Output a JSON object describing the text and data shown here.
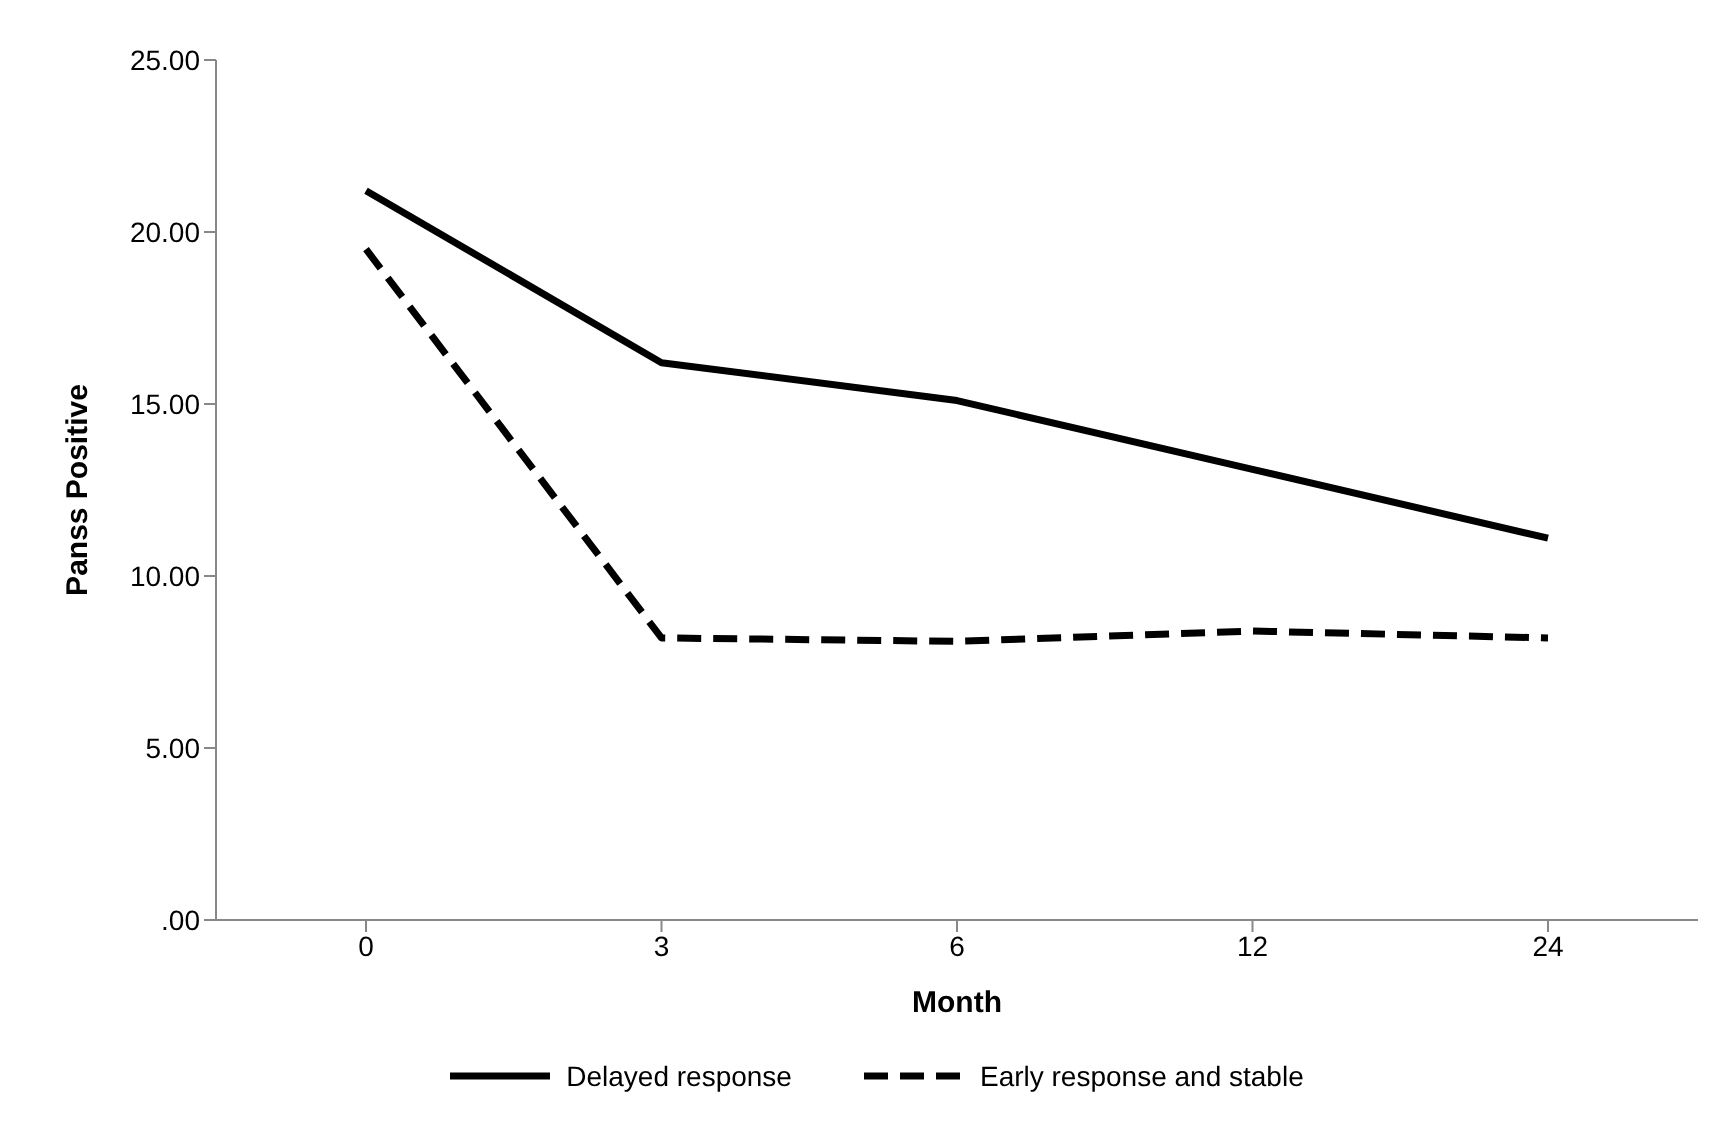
{
  "chart_data": {
    "type": "line",
    "xlabel": "Month",
    "ylabel": "Panss Positive",
    "categories": [
      "0",
      "3",
      "6",
      "12",
      "24"
    ],
    "series": [
      {
        "name": "Delayed response",
        "color": "#000000",
        "line_style": "solid",
        "values": [
          21.2,
          16.2,
          15.1,
          13.1,
          11.1
        ]
      },
      {
        "name": "Early response and stable",
        "color": "#000000",
        "line_style": "dashed",
        "values": [
          19.5,
          8.2,
          8.1,
          8.4,
          8.2
        ]
      }
    ],
    "ylim": [
      0,
      25
    ],
    "yticks": [
      {
        "value": 0,
        "label": ".00"
      },
      {
        "value": 5,
        "label": "5.00"
      },
      {
        "value": 10,
        "label": "10.00"
      },
      {
        "value": 15,
        "label": "15.00"
      },
      {
        "value": 20,
        "label": "20.00"
      },
      {
        "value": 25,
        "label": "25.00"
      }
    ],
    "grid": false,
    "legend": "bottom",
    "marker": "none"
  }
}
